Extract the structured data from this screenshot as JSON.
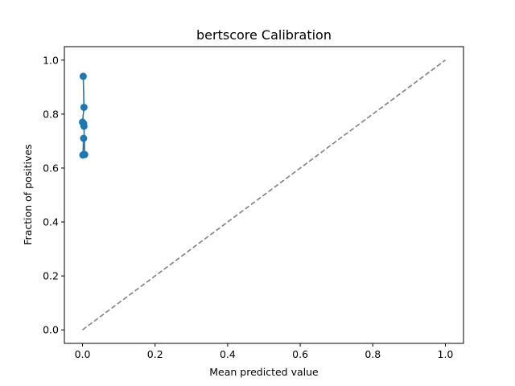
{
  "chart_data": {
    "type": "line",
    "title": "bertscore Calibration",
    "xlabel": "Mean predicted value",
    "ylabel": "Fraction of positives",
    "xlim": [
      -0.05,
      1.05
    ],
    "ylim": [
      -0.05,
      1.05
    ],
    "x_ticks": [
      0.0,
      0.2,
      0.4,
      0.6,
      0.8,
      1.0
    ],
    "y_ticks": [
      0.0,
      0.2,
      0.4,
      0.6,
      0.8,
      1.0
    ],
    "x_tick_labels": [
      "0.0",
      "0.2",
      "0.4",
      "0.6",
      "0.8",
      "1.0"
    ],
    "y_tick_labels": [
      "0.0",
      "0.2",
      "0.4",
      "0.6",
      "0.8",
      "1.0"
    ],
    "grid": false,
    "series": [
      {
        "x": [
          0.002,
          0.004,
          0.0,
          0.003,
          0.004,
          0.006,
          0.003,
          0.001,
          0.003
        ],
        "y": [
          0.94,
          0.825,
          0.77,
          0.765,
          0.755,
          0.65,
          0.65,
          0.648,
          0.71
        ],
        "color": "#1f77b4",
        "style": "solid",
        "marker": "circle"
      },
      {
        "x": [
          0.0,
          1.0
        ],
        "y": [
          0.0,
          1.0
        ],
        "color": "#808080",
        "style": "dashed",
        "marker": "none"
      }
    ]
  }
}
